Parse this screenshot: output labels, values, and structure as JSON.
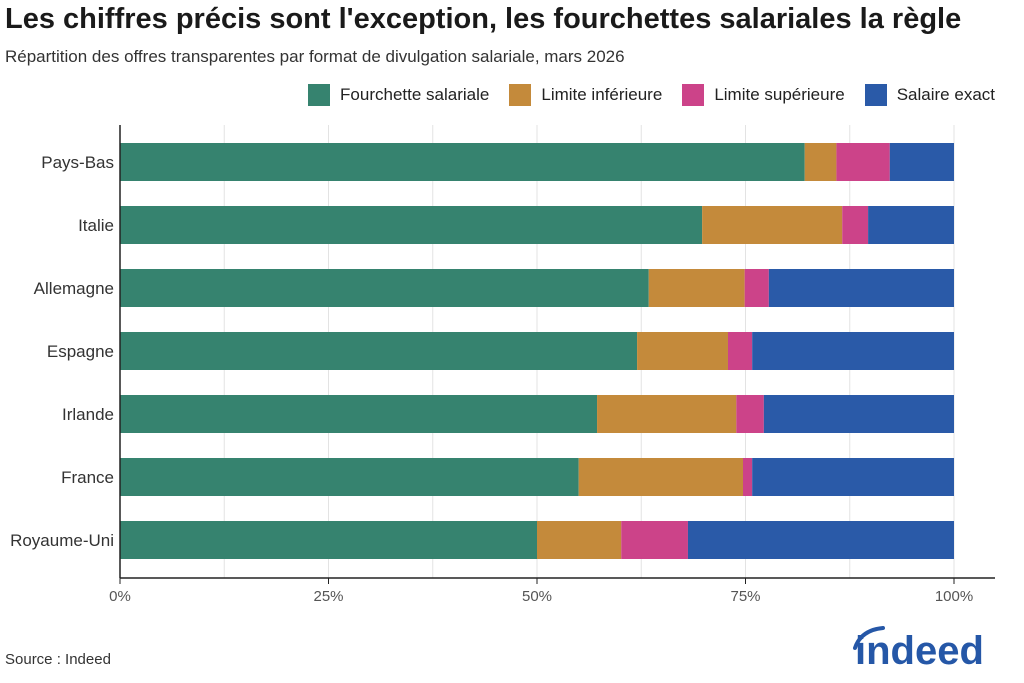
{
  "chart_data": {
    "type": "bar",
    "orientation": "horizontal",
    "stacked": true,
    "title": "Les chiffres précis sont l'exception, les fourchettes salariales la règle",
    "subtitle": "Répartition des offres transparentes par format de divulgation salariale, mars 2026",
    "categories": [
      "Pays-Bas",
      "Italie",
      "Allemagne",
      "Espagne",
      "Irlande",
      "France",
      "Royaume-Uni"
    ],
    "series": [
      {
        "name": "Fourchette salariale",
        "color": "#36836f",
        "values": [
          82.1,
          69.8,
          63.4,
          62.0,
          57.2,
          55.0,
          50.0
        ]
      },
      {
        "name": "Limite inférieure",
        "color": "#c48a3b",
        "values": [
          3.8,
          16.8,
          11.5,
          10.9,
          16.7,
          19.7,
          10.1
        ]
      },
      {
        "name": "Limite supérieure",
        "color": "#cc4389",
        "values": [
          6.4,
          3.1,
          2.9,
          2.9,
          3.3,
          1.1,
          8.0
        ]
      },
      {
        "name": "Salaire exact",
        "color": "#2a5aa8",
        "values": [
          7.7,
          10.3,
          22.2,
          24.2,
          22.8,
          24.2,
          31.9
        ]
      }
    ],
    "xlim": [
      0,
      100
    ],
    "xticks": [
      0,
      25,
      50,
      75,
      100
    ],
    "xtick_labels": [
      "0%",
      "25%",
      "50%",
      "75%",
      "100%"
    ],
    "grid": true,
    "legend_position": "top-right"
  },
  "source": "Source : Indeed",
  "logo_text": "indeed",
  "logo_color": "#2557a7"
}
